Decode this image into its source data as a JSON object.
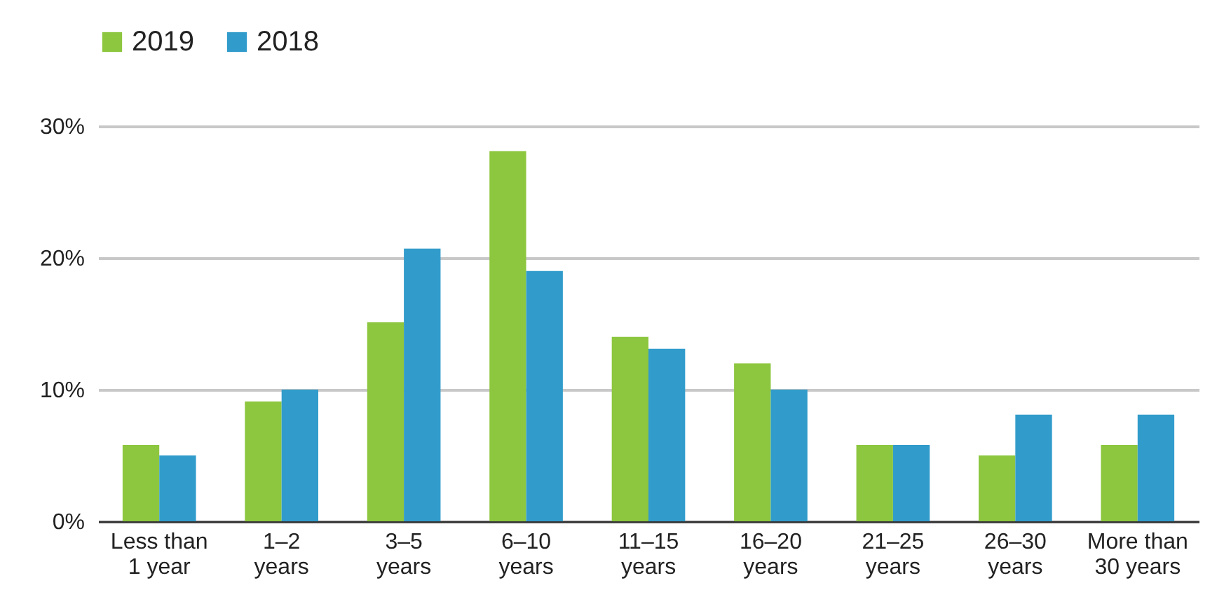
{
  "chart_data": {
    "type": "bar",
    "categories": [
      "Less than 1 year",
      "1–2 years",
      "3–5 years",
      "6–10 years",
      "11–15 years",
      "16–20 years",
      "21–25 years",
      "26–30 years",
      "More than 30 years"
    ],
    "series": [
      {
        "name": "2019",
        "color": "#8dc63f",
        "values": [
          5.8,
          9.1,
          15.1,
          28.1,
          14.0,
          12.0,
          5.8,
          5.0,
          5.8
        ]
      },
      {
        "name": "2018",
        "color": "#319ccb",
        "values": [
          5.0,
          10.0,
          20.7,
          19.0,
          13.1,
          10.0,
          5.8,
          8.1,
          8.1
        ]
      }
    ],
    "ylim": [
      0,
      30
    ],
    "yticks": [
      {
        "value": 0,
        "label": "0%"
      },
      {
        "value": 10,
        "label": "10%"
      },
      {
        "value": 20,
        "label": "20%"
      },
      {
        "value": 30,
        "label": "30%"
      }
    ],
    "grid": "y",
    "legend": "top"
  }
}
